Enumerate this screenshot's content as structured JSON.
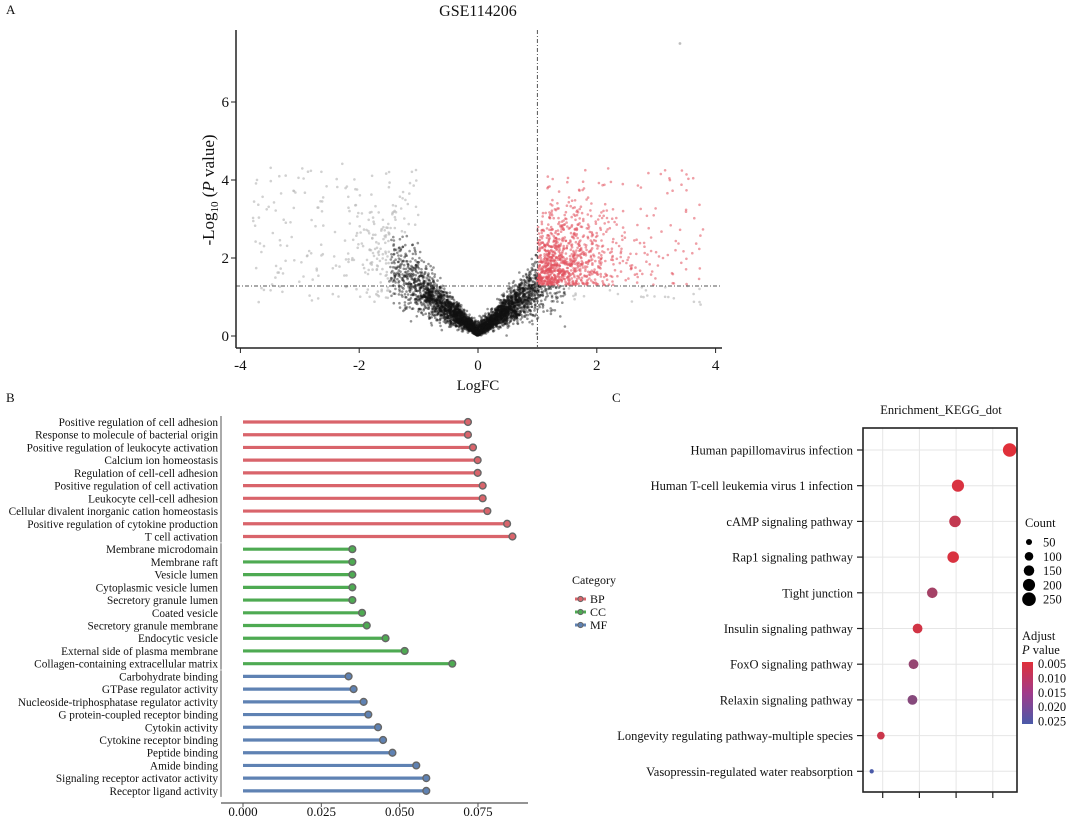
{
  "panel_labels": {
    "a": "A",
    "b": "B",
    "c": "C"
  },
  "chart_data": [
    {
      "id": "volcano",
      "type": "scatter",
      "title": "GSE114206",
      "xlabel": "LogFC",
      "ylabel": {
        "pre": "-Log",
        "sub": "10",
        "open": " (",
        "p": "P",
        "post": " value)"
      },
      "xlim": [
        -4,
        4
      ],
      "ylim": [
        0,
        7.8
      ],
      "xticks": [
        "-4",
        "-2",
        "0",
        "2",
        "4"
      ],
      "yticks": [
        "0",
        "2",
        "4",
        "6"
      ],
      "thresholds": {
        "logfc": 1,
        "neg_log10_p": 1.3
      },
      "colors": {
        "up": "#e2505c",
        "ns": "#111111",
        "outer": "#bdbdbd"
      },
      "grid": false
    },
    {
      "id": "go-lollipop",
      "type": "bar",
      "orientation": "horizontal",
      "xticks": [
        "0.000",
        "0.025",
        "0.050",
        "0.075"
      ],
      "xlim": [
        0,
        0.088
      ],
      "legend": {
        "title": "Category",
        "placement": "right",
        "entries": [
          {
            "name": "BP",
            "color": "#d9646b"
          },
          {
            "name": "CC",
            "color": "#4eaa52"
          },
          {
            "name": "MF",
            "color": "#5f82b3"
          }
        ]
      },
      "series": [
        {
          "name": "BP",
          "color": "#d9646b",
          "categories": [
            "Positive regulation of cell adhesion",
            "Response to molecule of bacterial origin",
            "Positive regulation of leukocyte activation",
            "Calcium ion  homeostasis",
            "Regulation of cell-cell adhesion",
            "Positive regulation of cell activation",
            "Leukocyte cell-cell adhesion",
            "Cellular divalent inorganic cation homeostasis",
            "Positive regulation of cytokine production",
            "T cell activation"
          ],
          "values": [
            0.0718,
            0.0718,
            0.0734,
            0.0749,
            0.0749,
            0.0765,
            0.0765,
            0.078,
            0.0843,
            0.086
          ]
        },
        {
          "name": "CC",
          "color": "#4eaa52",
          "categories": [
            "Membrane microdomain",
            "Membrane raft",
            "Vesicle lumen",
            "Cytoplasmic vesicle lumen",
            "Secretory granule lumen",
            "Coated vesicle",
            "Secretory granule membrane",
            "Endocytic vesicle",
            "External side of plasma membrane",
            "Collagen-containing extracellular matrix"
          ],
          "values": [
            0.0349,
            0.0349,
            0.0349,
            0.0349,
            0.0349,
            0.038,
            0.0395,
            0.0455,
            0.0516,
            0.0668
          ]
        },
        {
          "name": "MF",
          "color": "#5f82b3",
          "categories": [
            "Carbohydrate binding",
            "GTPase regulator activity",
            "Nucleoside-triphosphatase regulator activity",
            "G protein-coupled receptor binding",
            "Cytokin activity",
            "Cytokine receptor binding",
            "Peptide binding",
            "Amide binding",
            "Signaling receptor activator activity",
            "Receptor ligand activity"
          ],
          "values": [
            0.0337,
            0.0353,
            0.0385,
            0.04,
            0.0431,
            0.0447,
            0.0477,
            0.0553,
            0.0585,
            0.0585
          ]
        }
      ]
    },
    {
      "id": "kegg-dot",
      "type": "scatter",
      "title": "Enrichment_KEGG_dot",
      "xticks_labeled": false,
      "grid": true,
      "categories": [
        "Human papillomavirus infection",
        "Human T-cell leukemia virus 1 infection",
        "cAMP signaling pathway",
        "Rap1 signaling pathway",
        "Tight junction",
        "Insulin signaling pathway",
        "FoxO signaling pathway",
        "Relaxin signaling pathway",
        "Longevity regulating pathway-multiple species",
        "Vasopressin-regulated water reabsorption"
      ],
      "x": [
        4.46,
        3.05,
        2.97,
        2.92,
        2.35,
        1.95,
        1.84,
        1.81,
        0.95,
        0.7
      ],
      "count": [
        250,
        200,
        180,
        180,
        150,
        130,
        130,
        130,
        80,
        25
      ],
      "adjust_p": [
        0.005,
        0.006,
        0.009,
        0.006,
        0.013,
        0.007,
        0.015,
        0.017,
        0.008,
        0.025
      ],
      "size_legend": {
        "title": "Count",
        "values": [
          "50",
          "100",
          "150",
          "200",
          "250"
        ]
      },
      "color_legend": {
        "title_1": "Adjust",
        "title_p": "P",
        "title_2": " value",
        "ticks": [
          "0.005",
          "0.010",
          "0.015",
          "0.020",
          "0.025"
        ],
        "low_color": "#e0303a",
        "high_color": "#4a5aa8"
      },
      "legend_placement": "right"
    }
  ]
}
